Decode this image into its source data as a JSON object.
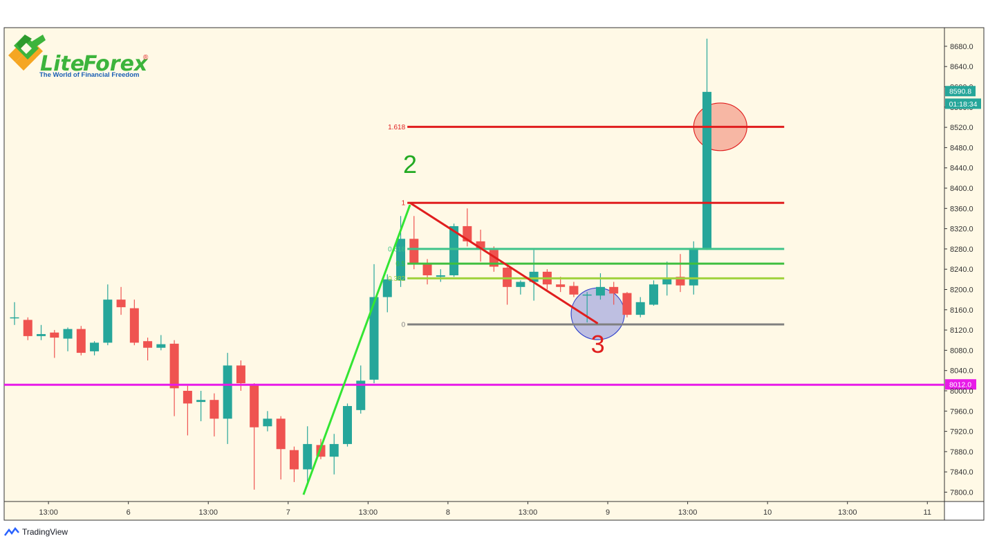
{
  "brand": {
    "name_part1": "Lite",
    "name_part2": "Forex",
    "registered": "®",
    "tagline": "The World of Financial Freedom",
    "colors": {
      "green": "#3cb43c",
      "orange": "#f5a623",
      "blue": "#1a5fb4"
    }
  },
  "footer": {
    "icon": "tradingview-icon",
    "label": "TradingView"
  },
  "colors": {
    "background": "#fff9e6",
    "bull": "#26a69a",
    "bear": "#ef5350",
    "fib_extension": "#e01e1e",
    "fib_1": "#e01e1e",
    "fib_0618": "#3ec38a",
    "fib_05": "#3fbf3f",
    "fib_0382": "#9fd23c",
    "fib_0": "#808080",
    "support": "#e81be8",
    "wave_up": "#33e533",
    "wave_down": "#e01e1e",
    "circle_red": "rgba(240,130,110,0.55)",
    "circle_blue": "rgba(110,120,220,0.45)"
  },
  "chart_data": {
    "type": "candlestick",
    "title": "",
    "y_axis": {
      "min": 7780,
      "max": 8710,
      "ticks": [
        7800,
        7840,
        7880,
        7920,
        7960,
        8000,
        8040,
        8080,
        8120,
        8160,
        8200,
        8240,
        8280,
        8320,
        8360,
        8400,
        8440,
        8480,
        8520,
        8560,
        8600,
        8640,
        8680
      ],
      "tick_labels": [
        "7800.0",
        "7840.0",
        "7880.0",
        "7920.0",
        "7960.0",
        "8000.0",
        "8040.0",
        "8080.0",
        "8120.0",
        "8160.0",
        "8200.0",
        "8240.0",
        "8280.0",
        "8320.0",
        "8360.0",
        "8400.0",
        "8440.0",
        "8480.0",
        "8520.0",
        "8560.0",
        "8600.0",
        "8640.0",
        "8680.0"
      ]
    },
    "x_axis": {
      "labels": [
        {
          "text": "13:00",
          "index": 2
        },
        {
          "text": "6",
          "index": 8
        },
        {
          "text": "13:00",
          "index": 14
        },
        {
          "text": "7",
          "index": 20
        },
        {
          "text": "13:00",
          "index": 26
        },
        {
          "text": "8",
          "index": 32
        },
        {
          "text": "13:00",
          "index": 38
        },
        {
          "text": "9",
          "index": 44
        },
        {
          "text": "13:00",
          "index": 50
        },
        {
          "text": "10",
          "index": 56
        },
        {
          "text": "13:00",
          "index": 62
        },
        {
          "text": "11",
          "index": 68
        }
      ]
    },
    "candles": [
      {
        "o": 8145,
        "h": 8175,
        "l": 8130,
        "c": 8145
      },
      {
        "o": 8140,
        "h": 8145,
        "l": 8100,
        "c": 8108
      },
      {
        "o": 8108,
        "h": 8130,
        "l": 8100,
        "c": 8112
      },
      {
        "o": 8115,
        "h": 8120,
        "l": 8065,
        "c": 8105
      },
      {
        "o": 8103,
        "h": 8125,
        "l": 8078,
        "c": 8122
      },
      {
        "o": 8122,
        "h": 8128,
        "l": 8070,
        "c": 8075
      },
      {
        "o": 8078,
        "h": 8098,
        "l": 8070,
        "c": 8095
      },
      {
        "o": 8095,
        "h": 8210,
        "l": 8090,
        "c": 8180
      },
      {
        "o": 8180,
        "h": 8205,
        "l": 8150,
        "c": 8165
      },
      {
        "o": 8163,
        "h": 8180,
        "l": 8090,
        "c": 8095
      },
      {
        "o": 8098,
        "h": 8105,
        "l": 8060,
        "c": 8085
      },
      {
        "o": 8085,
        "h": 8110,
        "l": 8080,
        "c": 8092
      },
      {
        "o": 8093,
        "h": 8100,
        "l": 7950,
        "c": 8005
      },
      {
        "o": 8000,
        "h": 8010,
        "l": 7912,
        "c": 7975
      },
      {
        "o": 7978,
        "h": 8000,
        "l": 7940,
        "c": 7982
      },
      {
        "o": 7982,
        "h": 7995,
        "l": 7910,
        "c": 7945
      },
      {
        "o": 7945,
        "h": 8075,
        "l": 7895,
        "c": 8050
      },
      {
        "o": 8050,
        "h": 8060,
        "l": 8000,
        "c": 8015
      },
      {
        "o": 8012,
        "h": 8015,
        "l": 7805,
        "c": 7928
      },
      {
        "o": 7930,
        "h": 7960,
        "l": 7920,
        "c": 7945
      },
      {
        "o": 7945,
        "h": 7950,
        "l": 7825,
        "c": 7885
      },
      {
        "o": 7883,
        "h": 7890,
        "l": 7820,
        "c": 7845
      },
      {
        "o": 7845,
        "h": 7930,
        "l": 7818,
        "c": 7895
      },
      {
        "o": 7893,
        "h": 7905,
        "l": 7865,
        "c": 7870
      },
      {
        "o": 7870,
        "h": 7915,
        "l": 7835,
        "c": 7895
      },
      {
        "o": 7895,
        "h": 7975,
        "l": 7890,
        "c": 7970
      },
      {
        "o": 7962,
        "h": 8050,
        "l": 7955,
        "c": 8020
      },
      {
        "o": 8022,
        "h": 8250,
        "l": 8015,
        "c": 8185
      },
      {
        "o": 8185,
        "h": 8230,
        "l": 8155,
        "c": 8220
      },
      {
        "o": 8218,
        "h": 8345,
        "l": 8205,
        "c": 8300
      },
      {
        "o": 8300,
        "h": 8345,
        "l": 8240,
        "c": 8250
      },
      {
        "o": 8250,
        "h": 8260,
        "l": 8210,
        "c": 8228
      },
      {
        "o": 8225,
        "h": 8240,
        "l": 8215,
        "c": 8228
      },
      {
        "o": 8228,
        "h": 8330,
        "l": 8225,
        "c": 8325
      },
      {
        "o": 8325,
        "h": 8360,
        "l": 8285,
        "c": 8295
      },
      {
        "o": 8295,
        "h": 8318,
        "l": 8255,
        "c": 8280
      },
      {
        "o": 8278,
        "h": 8285,
        "l": 8235,
        "c": 8245
      },
      {
        "o": 8243,
        "h": 8245,
        "l": 8170,
        "c": 8205
      },
      {
        "o": 8205,
        "h": 8218,
        "l": 8190,
        "c": 8215
      },
      {
        "o": 8215,
        "h": 8278,
        "l": 8178,
        "c": 8235
      },
      {
        "o": 8235,
        "h": 8240,
        "l": 8200,
        "c": 8210
      },
      {
        "o": 8210,
        "h": 8225,
        "l": 8195,
        "c": 8205
      },
      {
        "o": 8207,
        "h": 8215,
        "l": 8185,
        "c": 8190
      },
      {
        "o": 8190,
        "h": 8195,
        "l": 8135,
        "c": 8190
      },
      {
        "o": 8188,
        "h": 8232,
        "l": 8180,
        "c": 8205
      },
      {
        "o": 8205,
        "h": 8215,
        "l": 8170,
        "c": 8192
      },
      {
        "o": 8193,
        "h": 8195,
        "l": 8145,
        "c": 8150
      },
      {
        "o": 8150,
        "h": 8185,
        "l": 8145,
        "c": 8175
      },
      {
        "o": 8170,
        "h": 8218,
        "l": 8168,
        "c": 8210
      },
      {
        "o": 8210,
        "h": 8255,
        "l": 8188,
        "c": 8222
      },
      {
        "o": 8225,
        "h": 8270,
        "l": 8195,
        "c": 8208
      },
      {
        "o": 8208,
        "h": 8295,
        "l": 8190,
        "c": 8282
      },
      {
        "o": 8282,
        "h": 8695,
        "l": 8278,
        "c": 8590
      }
    ],
    "fibonacci": {
      "levels": [
        {
          "ratio": "1.618",
          "label": "1.618",
          "price": 8521,
          "color_key": "fib_extension"
        },
        {
          "ratio": "1",
          "label": "1",
          "price": 8371,
          "color_key": "fib_1"
        },
        {
          "ratio": "0.618",
          "label": "0.618",
          "price": 8280,
          "color_key": "fib_0618"
        },
        {
          "ratio": "0.5",
          "label": "0.5",
          "price": 8251,
          "color_key": "fib_05"
        },
        {
          "ratio": "0.382",
          "label": "0.382",
          "price": 8222,
          "color_key": "fib_0382"
        },
        {
          "ratio": "0",
          "label": "0",
          "price": 8131,
          "color_key": "fib_0"
        }
      ],
      "start_index": 29.5,
      "end_index": 57.8
    },
    "waves": [
      {
        "from": {
          "index": 21.7,
          "price": 7795
        },
        "to": {
          "index": 29.7,
          "price": 8367
        },
        "color_key": "wave_up"
      },
      {
        "from": {
          "index": 29.7,
          "price": 8371
        },
        "to": {
          "index": 43.8,
          "price": 8133
        },
        "color_key": "wave_down"
      }
    ],
    "annotations": [
      {
        "text": "2",
        "index": 29.7,
        "price": 8430,
        "color": "#22aa22"
      },
      {
        "text": "3",
        "index": 43.8,
        "price": 8075,
        "color": "#e01e1e"
      }
    ],
    "circles": [
      {
        "index": 53.0,
        "price": 8521,
        "rx_bars": 2.0,
        "ry_price": 47,
        "color_key": "circle_red",
        "stroke": "#e01e1e"
      },
      {
        "index": 43.8,
        "price": 8152,
        "rx_bars": 2.0,
        "ry_price": 51,
        "color_key": "circle_blue",
        "stroke": "#3344cc"
      }
    ],
    "horizontal_lines": [
      {
        "price": 8012,
        "label": "8012.0",
        "color_key": "support"
      }
    ],
    "price_badges": [
      {
        "price": 8590.8,
        "label": "8590.8",
        "color_key": "bull"
      },
      {
        "price": 8566,
        "label": "01:18:34",
        "color_key": "bull"
      }
    ]
  }
}
